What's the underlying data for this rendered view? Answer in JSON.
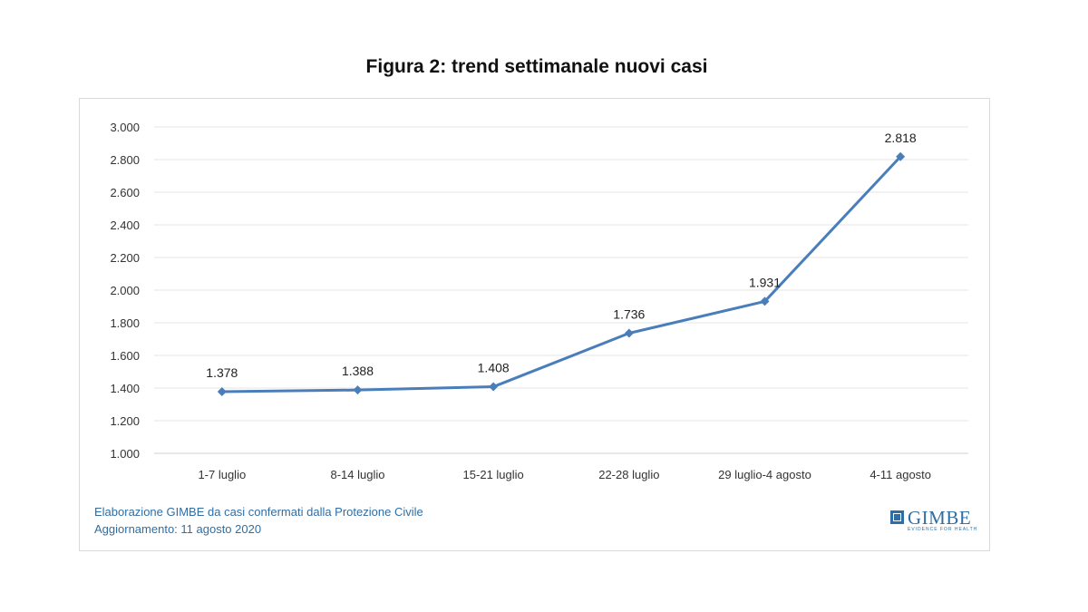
{
  "title": "Figura 2: trend settimanale nuovi casi",
  "source": {
    "line1": "Elaborazione GIMBE da casi confermati dalla Protezione  Civile",
    "line2": "Aggiornamento: 11 agosto 2020"
  },
  "logo": {
    "name": "GIMBE",
    "tagline": "EVIDENCE FOR HEALTH"
  },
  "chart_data": {
    "type": "line",
    "title": "Figura 2: trend settimanale nuovi casi",
    "categories": [
      "1-7 luglio",
      "8-14 luglio",
      "15-21 luglio",
      "22-28 luglio",
      "29 luglio-4 agosto",
      "4-11 agosto"
    ],
    "series": [
      {
        "values": [
          1378,
          1388,
          1408,
          1736,
          1931,
          2818
        ]
      }
    ],
    "data_labels": [
      "1.378",
      "1.388",
      "1.408",
      "1.736",
      "1.931",
      "2.818"
    ],
    "y_ticks": [
      {
        "value": 1000,
        "label": "1.000"
      },
      {
        "value": 1200,
        "label": "1.200"
      },
      {
        "value": 1400,
        "label": "1.400"
      },
      {
        "value": 1600,
        "label": "1.600"
      },
      {
        "value": 1800,
        "label": "1.800"
      },
      {
        "value": 2000,
        "label": "2.000"
      },
      {
        "value": 2200,
        "label": "2.200"
      },
      {
        "value": 2400,
        "label": "2.400"
      },
      {
        "value": 2600,
        "label": "2.600"
      },
      {
        "value": 2800,
        "label": "2.800"
      },
      {
        "value": 3000,
        "label": "3.000"
      }
    ],
    "ylim": [
      1000,
      3000
    ],
    "grid": true,
    "legend": "none",
    "colors": {
      "line": "#4a7ebb",
      "grid": "#e6e6e6"
    }
  }
}
